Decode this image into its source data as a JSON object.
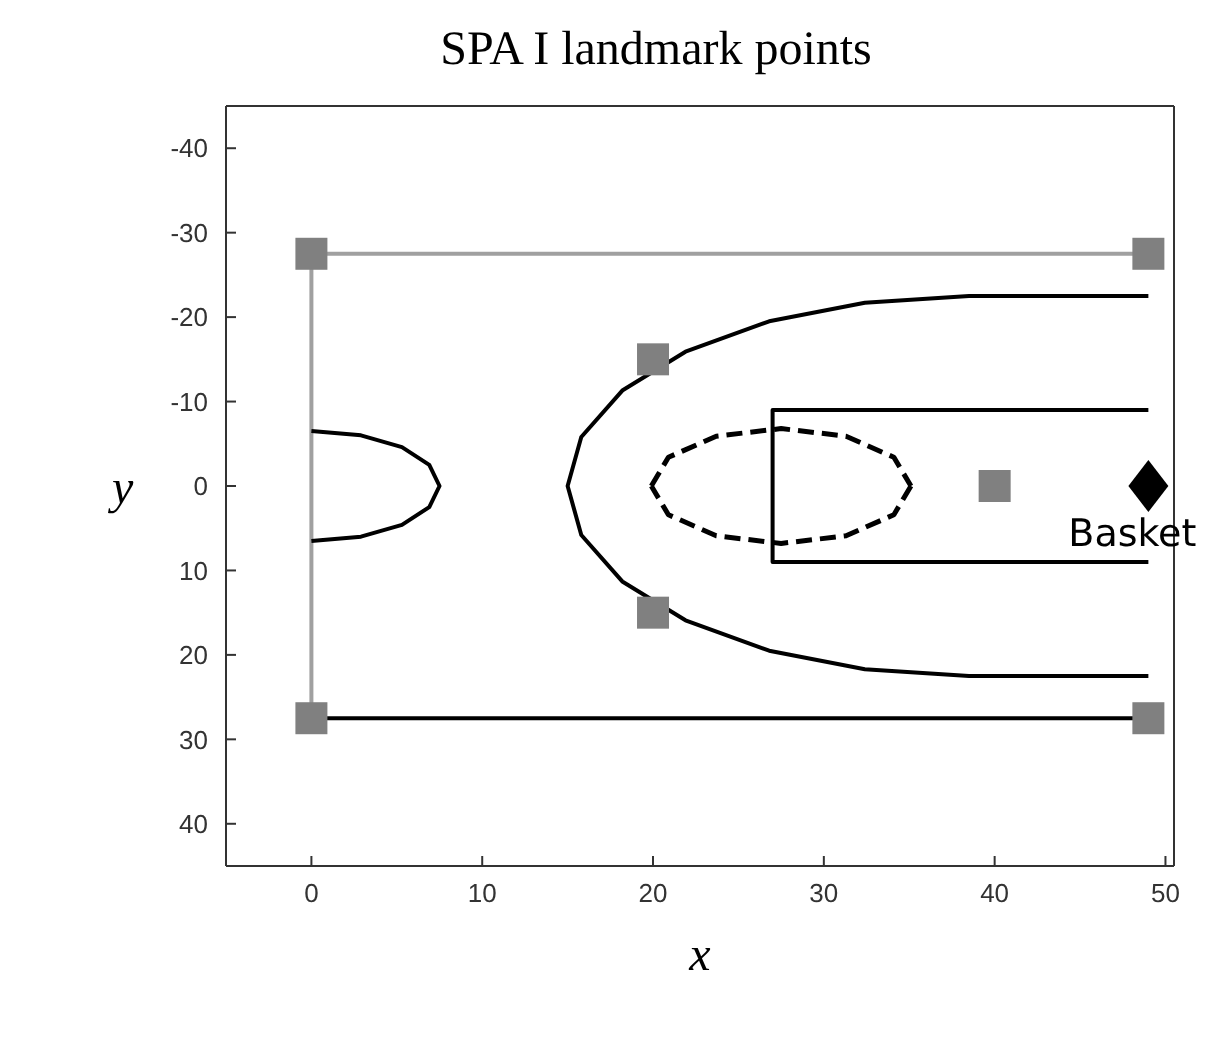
{
  "chart_data": {
    "type": "scatter",
    "title": "SPA I landmark points",
    "xlabel": "x",
    "ylabel": "y",
    "xlim": [
      -5,
      50.5
    ],
    "xticks": [
      0,
      10,
      20,
      30,
      40,
      50
    ],
    "ylim": [
      45,
      -45
    ],
    "yticks": [
      -40,
      -30,
      -20,
      -10,
      0,
      10,
      20,
      30,
      40
    ],
    "grid": false,
    "annotations": [
      {
        "text": "Basket",
        "x": 49,
        "y": 0
      }
    ],
    "series": [
      {
        "type": "line",
        "color": "#a0a0a0",
        "line_style": "solid",
        "marker": "none",
        "x": [
          49,
          0,
          0
        ],
        "values": [
          -27.5,
          -27.5,
          27.5
        ]
      },
      {
        "type": "line",
        "color": "#000000",
        "line_style": "solid",
        "marker": "none",
        "x": [
          0,
          49
        ],
        "values": [
          27.5,
          27.5
        ]
      },
      {
        "type": "line",
        "color": "#000000",
        "line_style": "solid",
        "marker": "none",
        "x": [
          0,
          2.9,
          5.3,
          6.9,
          7.5,
          6.9,
          5.3,
          2.9,
          0
        ],
        "values": [
          -6.5,
          -6,
          -4.6,
          -2.5,
          0,
          2.5,
          4.6,
          6,
          6.5
        ]
      },
      {
        "type": "line",
        "color": "#000000",
        "line_style": "solid",
        "marker": "none",
        "x": [
          49,
          38.5,
          32.4,
          26.8,
          21.9,
          18.2,
          15.8,
          15,
          15.8,
          18.2,
          21.9,
          26.8,
          32.4,
          38.5,
          49
        ],
        "values": [
          -22.5,
          -22.5,
          -21.7,
          -19.5,
          -15.9,
          -11.3,
          -5.8,
          0,
          5.8,
          11.3,
          15.9,
          19.5,
          21.7,
          22.5,
          22.5
        ]
      },
      {
        "type": "line",
        "color": "#000000",
        "line_style": "solid",
        "marker": "none",
        "x": [
          49,
          27,
          27,
          49
        ],
        "values": [
          -9,
          -9,
          9,
          9
        ]
      },
      {
        "type": "line",
        "color": "#000000",
        "line_style": "dashed",
        "marker": "none",
        "x": [
          35.1,
          34.1,
          31.3,
          27.5,
          23.7,
          20.9,
          19.9
        ],
        "values": [
          0,
          3.4,
          5.9,
          6.8,
          5.9,
          3.4,
          0
        ]
      },
      {
        "type": "line",
        "color": "#000000",
        "line_style": "dashed",
        "marker": "none",
        "x": [
          19.9,
          20.9,
          23.7,
          27.5,
          31.3,
          34.1,
          35.1
        ],
        "values": [
          0,
          -3.4,
          -5.9,
          -6.8,
          -5.9,
          -3.4,
          0
        ]
      },
      {
        "color": "#808080",
        "marker": "square",
        "x": [
          0,
          49,
          20,
          20,
          40,
          0,
          49
        ],
        "values": [
          -27.5,
          -27.5,
          -15,
          15,
          0,
          27.5,
          27.5
        ]
      },
      {
        "color": "#000000",
        "marker": "diamond",
        "x": [
          49
        ],
        "values": [
          0
        ]
      }
    ]
  }
}
